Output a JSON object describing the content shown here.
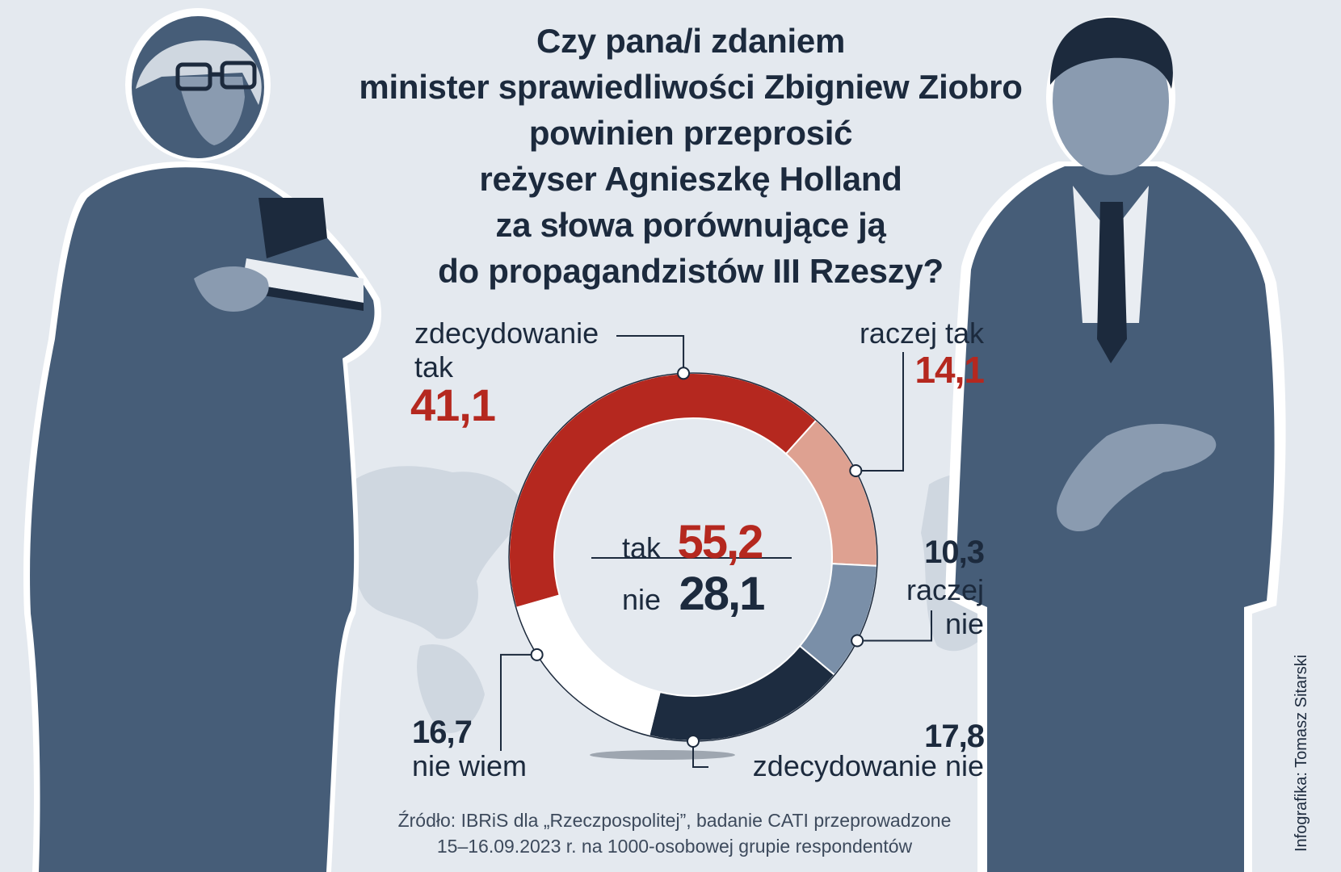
{
  "title_lines": [
    "Czy pana/i zdaniem",
    "minister sprawiedliwości Zbigniew Ziobro",
    "powinien przeprosić",
    "reżyser Agnieszkę Holland",
    "za słowa porównujące ją",
    "do propagandzistów III Rzeszy?"
  ],
  "center": {
    "yes_label": "tak",
    "yes_value": "55,2",
    "no_label": "nie",
    "no_value": "28,1"
  },
  "labels": {
    "zdecydowanie_tak": {
      "line1": "zdecydowanie",
      "line2": "tak",
      "value": "41,1"
    },
    "raczej_tak": {
      "text": "raczej tak",
      "value": "14,1"
    },
    "raczej_nie": {
      "line1": "raczej",
      "line2": "nie",
      "value": "10,3"
    },
    "zdecydowanie_nie": {
      "text": "zdecydowanie nie",
      "value": "17,8"
    },
    "nie_wiem": {
      "text": "nie wiem",
      "value": "16,7"
    }
  },
  "source_lines": [
    "Źródło: IBRiS dla „Rzeczpospolitej”, badanie CATI przeprowadzone",
    "15–16.09.2023 r. na 1000-osobowej grupie respondentów"
  ],
  "credit": "Infografika: Tomasz Sitarski",
  "colors": {
    "zdecydowanie_tak": "#b5281f",
    "raczej_tak": "#dea191",
    "raczej_nie": "#7a8fa8",
    "zdecydowanie_nie": "#1d2c40",
    "nie_wiem": "#ffffff",
    "figure": "#465d78",
    "figure_light": "#cfd7e0"
  },
  "chart_data": {
    "type": "pie",
    "variant": "donut",
    "title": "Czy pana/i zdaniem minister sprawiedliwości Zbigniew Ziobro powinien przeprosić reżyser Agnieszkę Holland za słowa porównujące ją do propagandzistów III Rzeszy?",
    "categories": [
      "zdecydowanie tak",
      "raczej tak",
      "raczej nie",
      "zdecydowanie nie",
      "nie wiem"
    ],
    "values": [
      41.1,
      14.1,
      10.3,
      17.8,
      16.7
    ],
    "totals": {
      "tak": 55.2,
      "nie": 28.1
    }
  }
}
